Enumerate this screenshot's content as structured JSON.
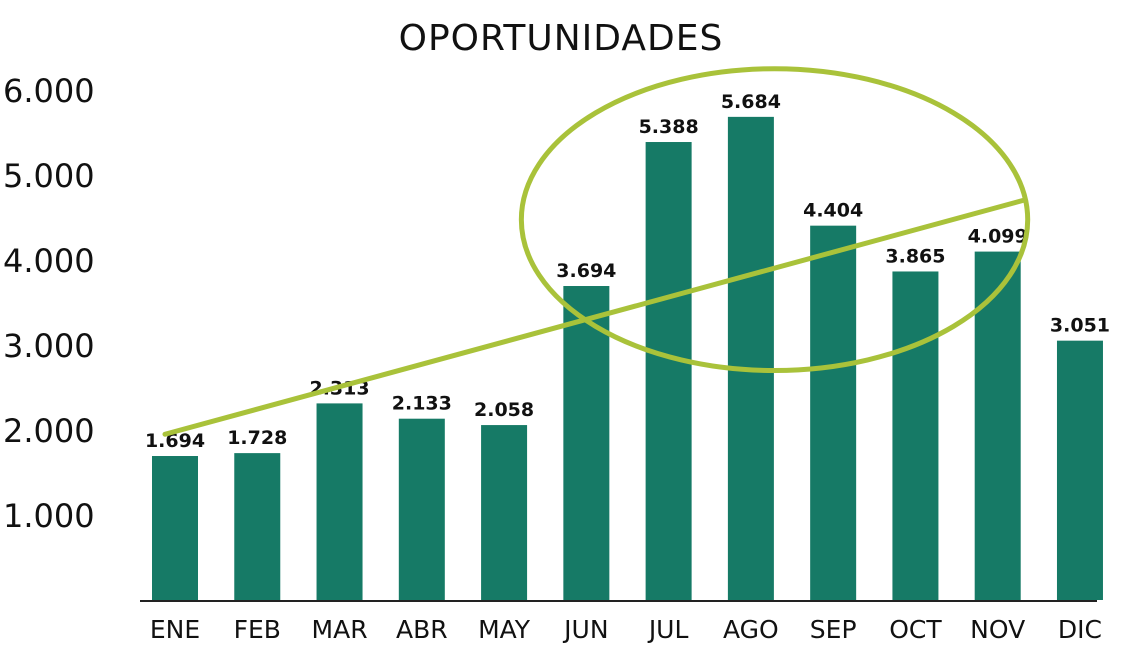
{
  "chart_data": {
    "type": "bar",
    "title": "OPORTUNIDADES",
    "categories": [
      "ENE",
      "FEB",
      "MAR",
      "ABR",
      "MAY",
      "JUN",
      "JUL",
      "AGO",
      "SEP",
      "OCT",
      "NOV",
      "DIC"
    ],
    "values": [
      1694,
      1728,
      2313,
      2133,
      2058,
      3694,
      5388,
      5684,
      4404,
      3865,
      4099,
      3051
    ],
    "value_labels": [
      "1.694",
      "1.728",
      "2.313",
      "2.133",
      "2.058",
      "3.694",
      "5.388",
      "5.684",
      "4.404",
      "3.865",
      "4.099",
      "3.051"
    ],
    "ytick_values": [
      1000,
      2000,
      3000,
      4000,
      5000,
      6000
    ],
    "ytick_labels": [
      "1.000",
      "2.000",
      "3.000",
      "4.000",
      "5.000",
      "6.000"
    ],
    "ylim": [
      0,
      6000
    ],
    "xlabel": "",
    "ylabel": "",
    "grid": false,
    "trendline": {
      "start": {
        "category": "ENE",
        "value": 1950
      },
      "end": {
        "category": "NOV",
        "value": 4700
      }
    },
    "highlight_ellipse": {
      "categories": [
        "JUN",
        "NOV"
      ],
      "value_range": [
        2700,
        6250
      ]
    },
    "colors": {
      "bar": "#167a66",
      "trend": "#a9c23a",
      "axis": "#222222",
      "text": "#111111"
    }
  }
}
